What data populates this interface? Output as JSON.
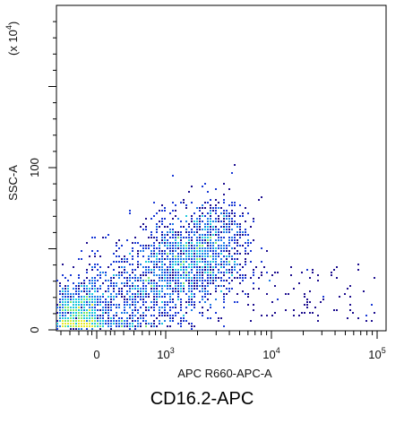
{
  "caption": "CD16.2-APC",
  "chart_data": {
    "type": "scatter",
    "subtype": "flow-cytometry-density-plot",
    "title": "",
    "xlabel": "APC R660-APC-A",
    "ylabel": "SSC-A",
    "y_multiplier_label": "(x 10",
    "y_multiplier_exp": "4",
    "y_multiplier_close": ")",
    "x_scale": "biexponential",
    "y_scale": "linear",
    "grid": false,
    "legend": "none",
    "x_ticks": [
      {
        "value": 0,
        "base": "0",
        "exp": ""
      },
      {
        "value": 1000,
        "base": "10",
        "exp": "3"
      },
      {
        "value": 10000,
        "base": "10",
        "exp": "4"
      },
      {
        "value": 100000,
        "base": "10",
        "exp": "5"
      }
    ],
    "y_ticks": [
      {
        "value": 0,
        "label": "0"
      },
      {
        "value": 100,
        "label": "100"
      }
    ],
    "ylim": [
      0,
      250
    ],
    "populations": [
      {
        "x_log": 2.05,
        "y": 8,
        "sx_log": 0.28,
        "sy": 10,
        "weight": 0.35
      },
      {
        "x_log": 2.65,
        "y": 22,
        "sx_log": 0.28,
        "sy": 14,
        "weight": 0.18
      },
      {
        "x_log": 3.12,
        "y": 40,
        "sx_log": 0.22,
        "sy": 15,
        "weight": 0.27
      },
      {
        "x_log": 3.45,
        "y": 52,
        "sx_log": 0.18,
        "sy": 15,
        "weight": 0.2
      }
    ],
    "density_colors": [
      "#1e0f8f",
      "#1a3ad6",
      "#1f7ee8",
      "#1ec9dc",
      "#7ee86c",
      "#e4ea2a"
    ]
  }
}
